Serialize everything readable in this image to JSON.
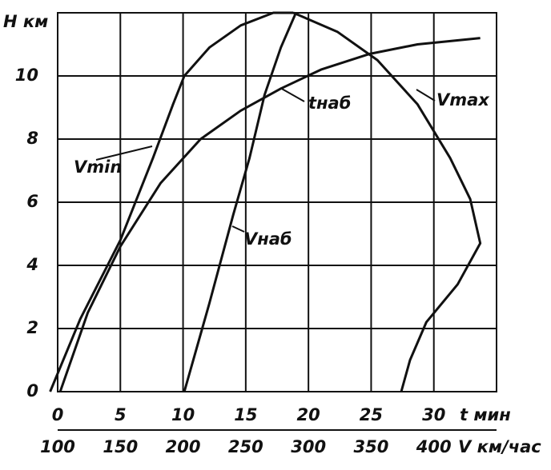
{
  "chart_data": {
    "type": "line",
    "ylabel": "H км",
    "xlabel": "t мин",
    "x2label": "V км/час",
    "xlim": [
      0,
      35
    ],
    "xticks": [
      0,
      5,
      10,
      15,
      20,
      25,
      30
    ],
    "x2lim": [
      100,
      450
    ],
    "x2ticks": [
      100,
      150,
      200,
      250,
      300,
      350,
      400
    ],
    "ylim": [
      0,
      12
    ],
    "yticks": [
      0,
      2,
      4,
      6,
      8,
      10
    ],
    "grid": true,
    "series": [
      {
        "name": "Vmin",
        "color": "#111111",
        "axis": "x2",
        "x": [
          94,
          118,
          150,
          176,
          192,
          201,
          221,
          246,
          272,
          288
        ],
        "values": [
          0,
          2.3,
          4.8,
          7.4,
          9.1,
          10.0,
          10.9,
          11.6,
          12.0,
          12.0
        ]
      },
      {
        "name": "Vmax",
        "color": "#111111",
        "axis": "x2",
        "x": [
          288,
          323,
          355,
          387,
          413,
          429,
          437,
          419,
          394,
          381,
          374
        ],
        "values": [
          12.0,
          11.4,
          10.5,
          9.1,
          7.4,
          6.1,
          4.7,
          3.4,
          2.2,
          1.0,
          0
        ]
      },
      {
        "name": "tнаб",
        "color": "#111111",
        "x": [
          0.2,
          2.4,
          5.0,
          8.2,
          11.4,
          14.6,
          17.8,
          21.0,
          24.9,
          28.7,
          33.7
        ],
        "values": [
          0,
          2.5,
          4.6,
          6.6,
          8.0,
          8.9,
          9.6,
          10.2,
          10.7,
          11.0,
          11.2
        ]
      },
      {
        "name": "Vнаб",
        "color": "#111111",
        "axis": "x2",
        "x": [
          201,
          221,
          240,
          253,
          265,
          278,
          290
        ],
        "values": [
          0,
          2.8,
          5.6,
          7.4,
          9.4,
          10.9,
          12.0
        ]
      }
    ]
  }
}
